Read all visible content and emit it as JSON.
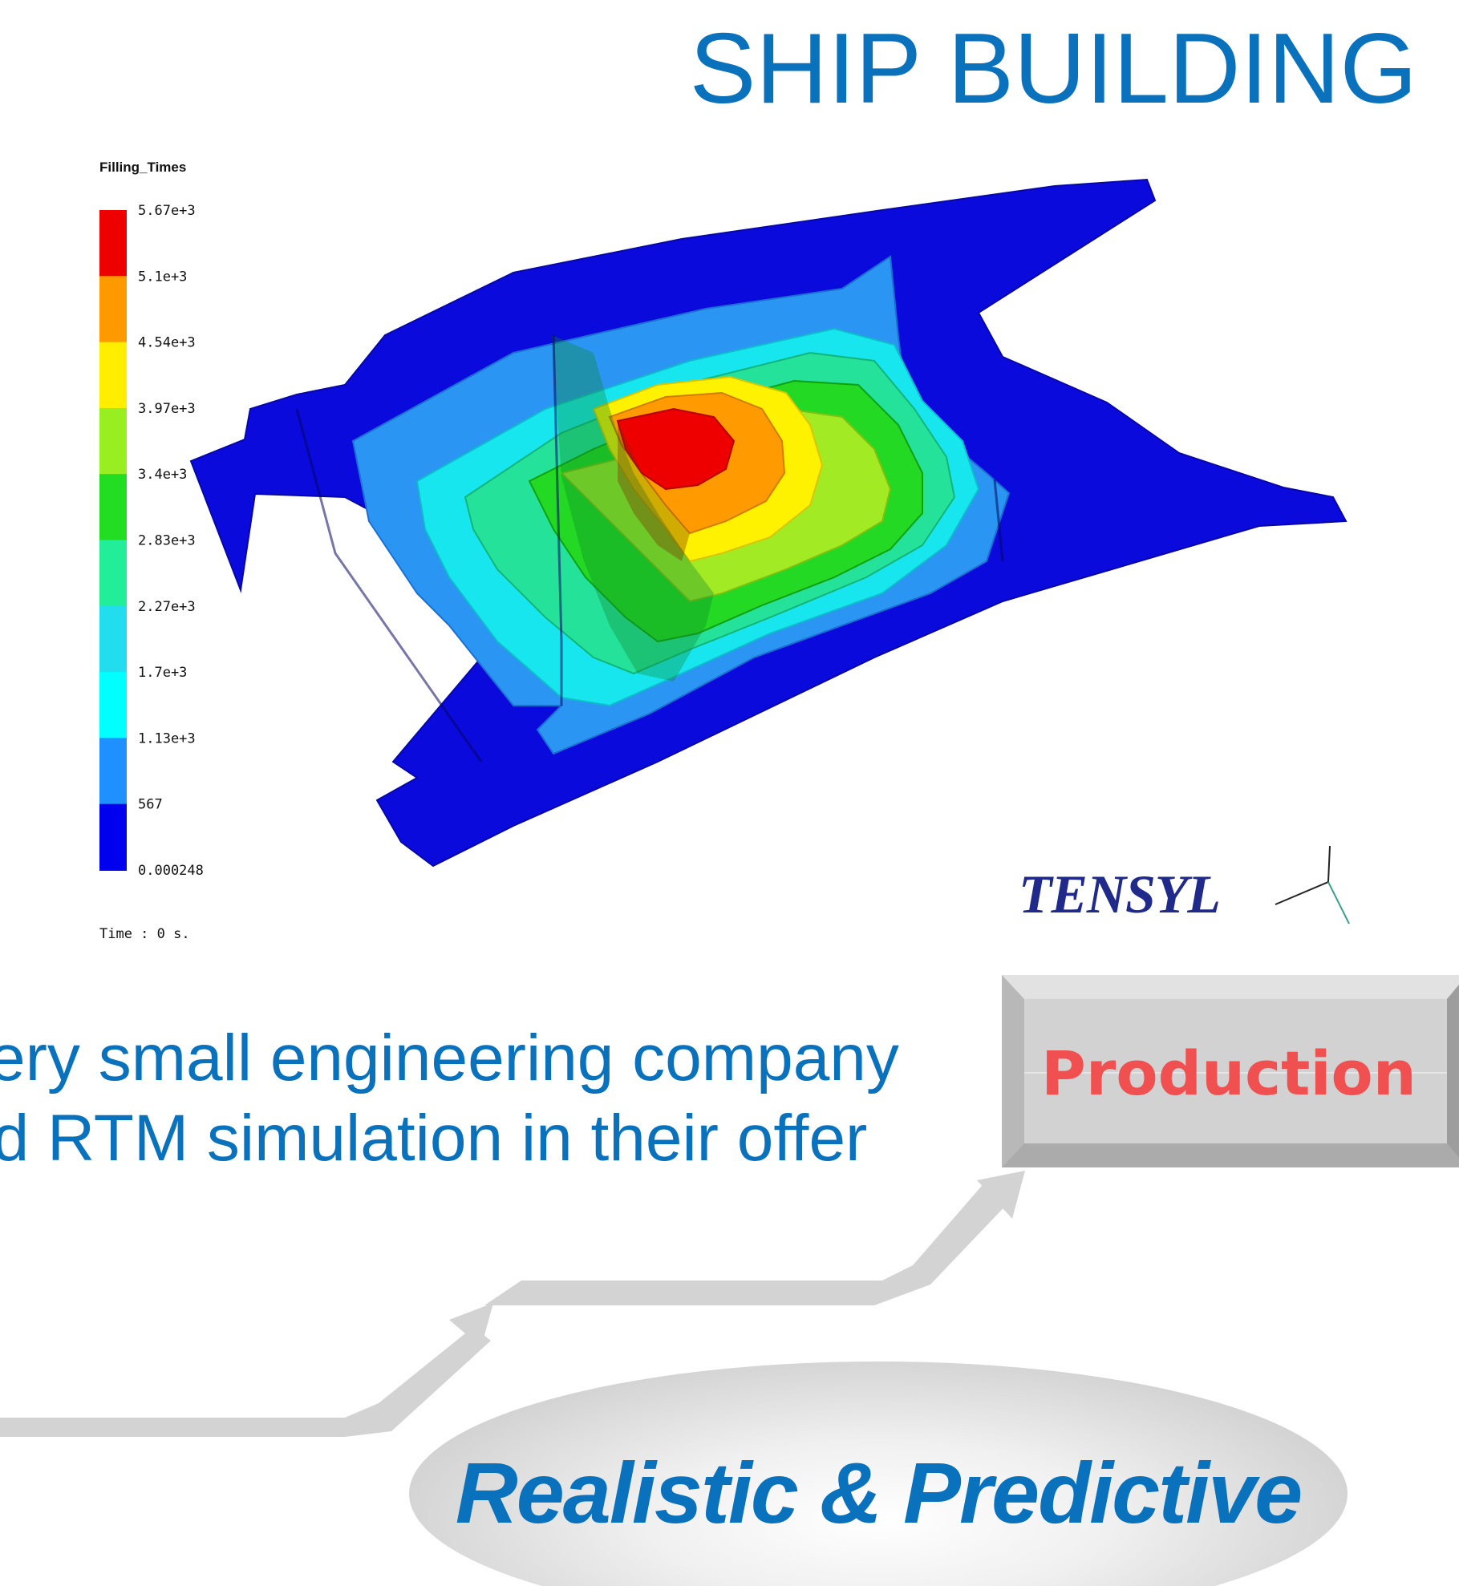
{
  "slide": {
    "title": "SHIP BUILDING",
    "body_lines": [
      "very small engineering company",
      "ed RTM simulation in their offer"
    ],
    "production_label": "Production",
    "tagline": "Realistic & Predictive"
  },
  "simulation": {
    "legend_title": "Filling_Times",
    "legend_labels": [
      "5.67e+3",
      "5.1e+3",
      "4.54e+3",
      "3.97e+3",
      "3.4e+3",
      "2.83e+3",
      "2.27e+3",
      "1.7e+3",
      "1.13e+3",
      "567",
      "0.000248"
    ],
    "legend_colors": [
      "#ee0000",
      "#ee0000",
      "#ff9900",
      "#ffee00",
      "#99ee22",
      "#22dd22",
      "#22ee99",
      "#22ddee",
      "#00ffff",
      "#1e90ff",
      "#0000ee"
    ],
    "time_label": "Time : 0 s.",
    "logo_text": "TENSYL"
  },
  "colors": {
    "title_blue": "#0a72bc",
    "production_red": "#f05050",
    "step_gray": "#d3d3d3"
  }
}
